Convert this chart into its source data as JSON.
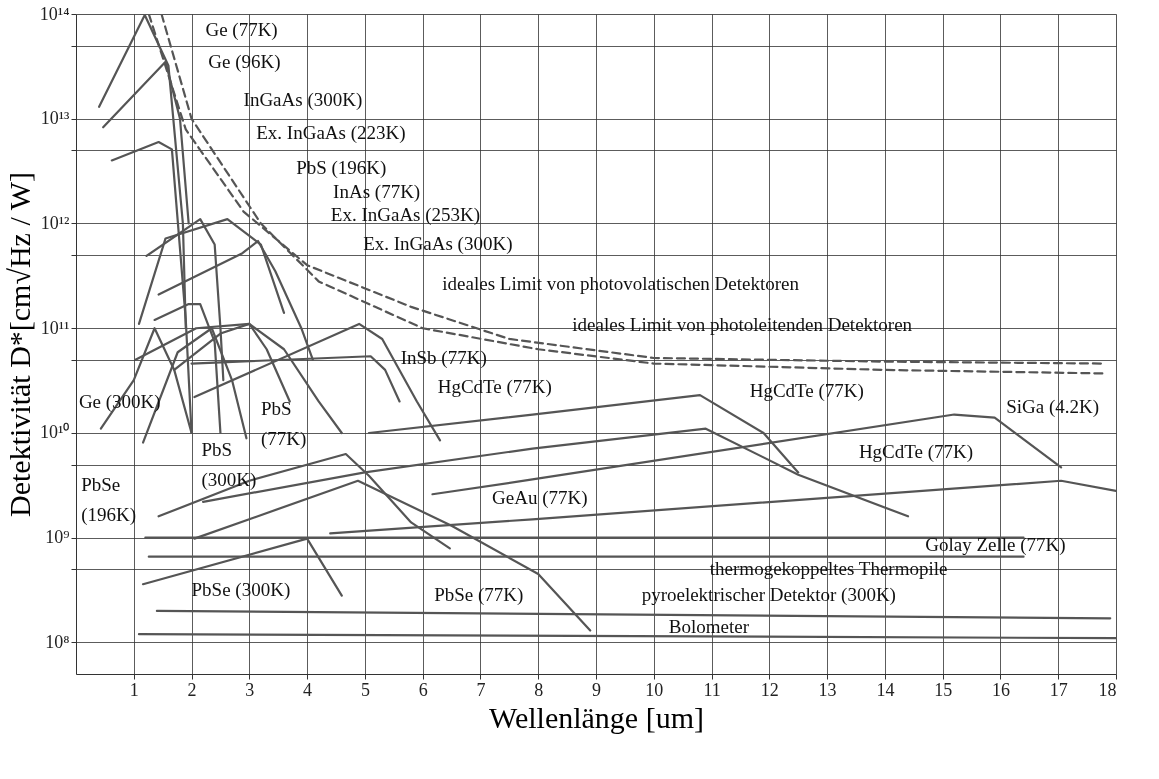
{
  "chart_data": {
    "type": "line",
    "xlabel": "Wellenlänge [um]",
    "ylabel": "Detektivität D*[cm√Hz / W]",
    "log": "y",
    "grid": true,
    "legend": false,
    "marker": "none",
    "xlim": [
      0,
      18
    ],
    "xticks": [
      1,
      2,
      3,
      4,
      5,
      6,
      7,
      8,
      9,
      10,
      11,
      12,
      13,
      14,
      15,
      16,
      17,
      18
    ],
    "ylim": [
      50000000.0,
      100000000000000.0
    ],
    "yticks": [
      {
        "value": 100000000.0,
        "label": "10⁸"
      },
      {
        "value": 500000000.0,
        "label": null
      },
      {
        "value": 1000000000.0,
        "label": "10⁹"
      },
      {
        "value": 5000000000.0,
        "label": null
      },
      {
        "value": 10000000000.0,
        "label": "10¹⁰"
      },
      {
        "value": 50000000000.0,
        "label": null
      },
      {
        "value": 100000000000.0,
        "label": "10¹¹"
      },
      {
        "value": 500000000000.0,
        "label": null
      },
      {
        "value": 1000000000000.0,
        "label": "10¹²"
      },
      {
        "value": 5000000000000.0,
        "label": null
      },
      {
        "value": 10000000000000.0,
        "label": "10¹³"
      },
      {
        "value": 50000000000000.0,
        "label": null
      },
      {
        "value": 100000000000000.0,
        "label": "10¹⁴"
      }
    ],
    "series": [
      {
        "color": "#555555",
        "x": [
          0.4,
          1.19,
          1.6,
          1.85,
          1.9
        ],
        "values": [
          13000000000000.0,
          98000000000000.0,
          32000000000000.0,
          1000000000000.0,
          100000000000.0
        ]
      },
      {
        "color": "#555555",
        "x": [
          0.47,
          1.55,
          1.8,
          1.95
        ],
        "values": [
          8300000000000.0,
          35000000000000.0,
          10000000000000.0,
          1000000000000.0
        ]
      },
      {
        "color": "#555555",
        "x": [
          0.62,
          1.43,
          1.66,
          1.9,
          2.0
        ],
        "values": [
          4000000000000.0,
          6000000000000.0,
          5100000000000.0,
          120000000000.0,
          10000000000.0
        ]
      },
      {
        "color": "#555555",
        "x": [
          1.22,
          2.15,
          2.4,
          2.5,
          2.55
        ],
        "values": [
          490000000000.0,
          1100000000000.0,
          630000000000.0,
          100000000000.0,
          32000000000.0
        ]
      },
      {
        "color": "#555555",
        "x": [
          1.09,
          1.55,
          2.62,
          3.2,
          3.6
        ],
        "values": [
          110000000000.0,
          720000000000.0,
          1100000000000.0,
          630000000000.0,
          140000000000.0
        ]
      },
      {
        "color": "#555555",
        "x": [
          1.43,
          2.88,
          3.15,
          3.45,
          3.9,
          4.1
        ],
        "values": [
          210000000000.0,
          520000000000.0,
          680000000000.0,
          350000000000.0,
          100000000000.0,
          50000000000.0
        ]
      },
      {
        "color": "#555555",
        "x": [
          1.36,
          1.95,
          2.15,
          2.4,
          2.5
        ],
        "values": [
          120000000000.0,
          170000000000.0,
          170000000000.0,
          74000000000.0,
          10000000000.0
        ]
      },
      {
        "color": "#555555",
        "x": [
          1.03,
          2.08,
          3.0,
          3.3,
          3.7
        ],
        "values": [
          50000000000.0,
          100000000000.0,
          110000000000.0,
          63000000000.0,
          20000000000.0
        ]
      },
      {
        "color": "#555555",
        "x": [
          0.43,
          1.0,
          1.36,
          1.7,
          2.0
        ],
        "values": [
          11000000000.0,
          32000000000.0,
          100000000000.0,
          40000000000.0,
          10000000000.0
        ]
      },
      {
        "color": "#555555",
        "x": [
          1.16,
          1.76,
          2.35,
          2.7,
          2.95
        ],
        "values": [
          8100000000.0,
          59000000000.0,
          100000000000.0,
          32000000000.0,
          8900000000.0
        ]
      },
      {
        "color": "#555555",
        "x": [
          1.7,
          2.5,
          3.0,
          3.6,
          4.2,
          4.6
        ],
        "values": [
          40000000000.0,
          89000000000.0,
          110000000000.0,
          63000000000.0,
          20000000000.0,
          10000000000.0
        ]
      },
      {
        "color": "#555555",
        "x": [
          2.0,
          5.1,
          5.35,
          5.6
        ],
        "values": [
          46000000000.0,
          54000000000.0,
          40000000000.0,
          20000000000.0
        ]
      },
      {
        "color": "#555555",
        "x": [
          2.05,
          4.9,
          5.3,
          5.9,
          6.3
        ],
        "values": [
          22000000000.0,
          110000000000.0,
          79000000000.0,
          20000000000.0,
          8500000000.0
        ]
      },
      {
        "color": "#555555",
        "x": [
          5.07,
          7.9,
          10.8,
          11.9,
          12.5
        ],
        "values": [
          10000000000.0,
          15000000000.0,
          23000000000.0,
          10000000000.0,
          4200000000.0
        ]
      },
      {
        "color": "#555555",
        "x": [
          2.2,
          5.0,
          7.9,
          10.9,
          12.5,
          14.4
        ],
        "values": [
          2200000000.0,
          4200000000.0,
          7100000000.0,
          11000000000.0,
          4000000000.0,
          1600000000.0
        ]
      },
      {
        "color": "#555555",
        "x": [
          6.17,
          7.9,
          15.2,
          15.9,
          17.05
        ],
        "values": [
          2600000000.0,
          3600000000.0,
          15000000000.0,
          14000000000.0,
          4700000000.0
        ]
      },
      {
        "color": "#555555",
        "x": [
          4.4,
          7.9,
          17.05,
          18
        ],
        "values": [
          1100000000.0,
          1500000000.0,
          3500000000.0,
          2800000000.0
        ]
      },
      {
        "color": "#555555",
        "x": [
          1.43,
          3.0,
          4.67,
          5.07,
          5.8,
          6.47
        ],
        "values": [
          1600000000.0,
          3500000000.0,
          6300000000.0,
          3900000000.0,
          1400000000.0,
          790000000.0
        ]
      },
      {
        "color": "#555555",
        "x": [
          2.05,
          4.88,
          6.5,
          8.0,
          8.9
        ],
        "values": [
          980000000.0,
          3500000000.0,
          1300000000.0,
          450000000.0,
          130000000.0
        ]
      },
      {
        "color": "#555555",
        "x": [
          1.16,
          4.0,
          4.6
        ],
        "values": [
          360000000.0,
          980000000.0,
          280000000.0
        ]
      },
      {
        "color": "#555555",
        "x": [
          1.2,
          16.4
        ],
        "values": [
          1000000000.0,
          1000000000.0
        ]
      },
      {
        "color": "#555555",
        "x": [
          1.26,
          16.4
        ],
        "values": [
          660000000.0,
          660000000.0
        ]
      },
      {
        "color": "#555555",
        "x": [
          1.4,
          17.9
        ],
        "values": [
          200000000.0,
          170000000.0
        ]
      },
      {
        "color": "#555555",
        "x": [
          1.09,
          18
        ],
        "values": [
          120000000.0,
          110000000.0
        ]
      },
      {
        "color": "#555555",
        "line_style": "dashed",
        "x": [
          1.26,
          1.9,
          2.9,
          4.0,
          5.8,
          7.5,
          10,
          14,
          17.8
        ],
        "values": [
          100000000000000.0,
          7900000000000.0,
          1300000000000.0,
          400000000000.0,
          160000000000.0,
          79000000000.0,
          52000000000.0,
          48000000000.0,
          46000000000.0
        ]
      },
      {
        "color": "#555555",
        "line_style": "dashed",
        "x": [
          1.48,
          2.0,
          3.2,
          4.2,
          6.0,
          8.0,
          10,
          14,
          17.8
        ],
        "values": [
          100000000000000.0,
          10000000000000.0,
          1000000000000.0,
          280000000000.0,
          100000000000.0,
          63000000000.0,
          46000000000.0,
          40000000000.0,
          37000000000.0
        ]
      }
    ],
    "annotations": [
      "Ge (77K)",
      "Ge (96K)",
      "InGaAs (300K)",
      "Ex. InGaAs (223K)",
      "PbS (196K)",
      "InAs (77K)",
      "Ex. InGaAs (253K)",
      "Ex. InGaAs (300K)",
      "ideales Limit von photovolatischen Detektoren",
      "ideales Limit von photoleitenden Detektoren",
      "InSb (77K)",
      "HgCdTe (77K)",
      "HgCdTe (77K)",
      "SiGa (4.2K)",
      "HgCdTe (77K)",
      "Ge (300K)",
      "PbS\n(77K)",
      "PbS\n(300K)",
      "PbSe\n(196K)",
      "GeAu (77K)",
      "Golay Zelle (77K)",
      "thermogekoppeltes Thermopile",
      "PbSe (300K)",
      "PbSe (77K)",
      "pyroelektrischer Detektor (300K)",
      "Bolometer"
    ]
  }
}
